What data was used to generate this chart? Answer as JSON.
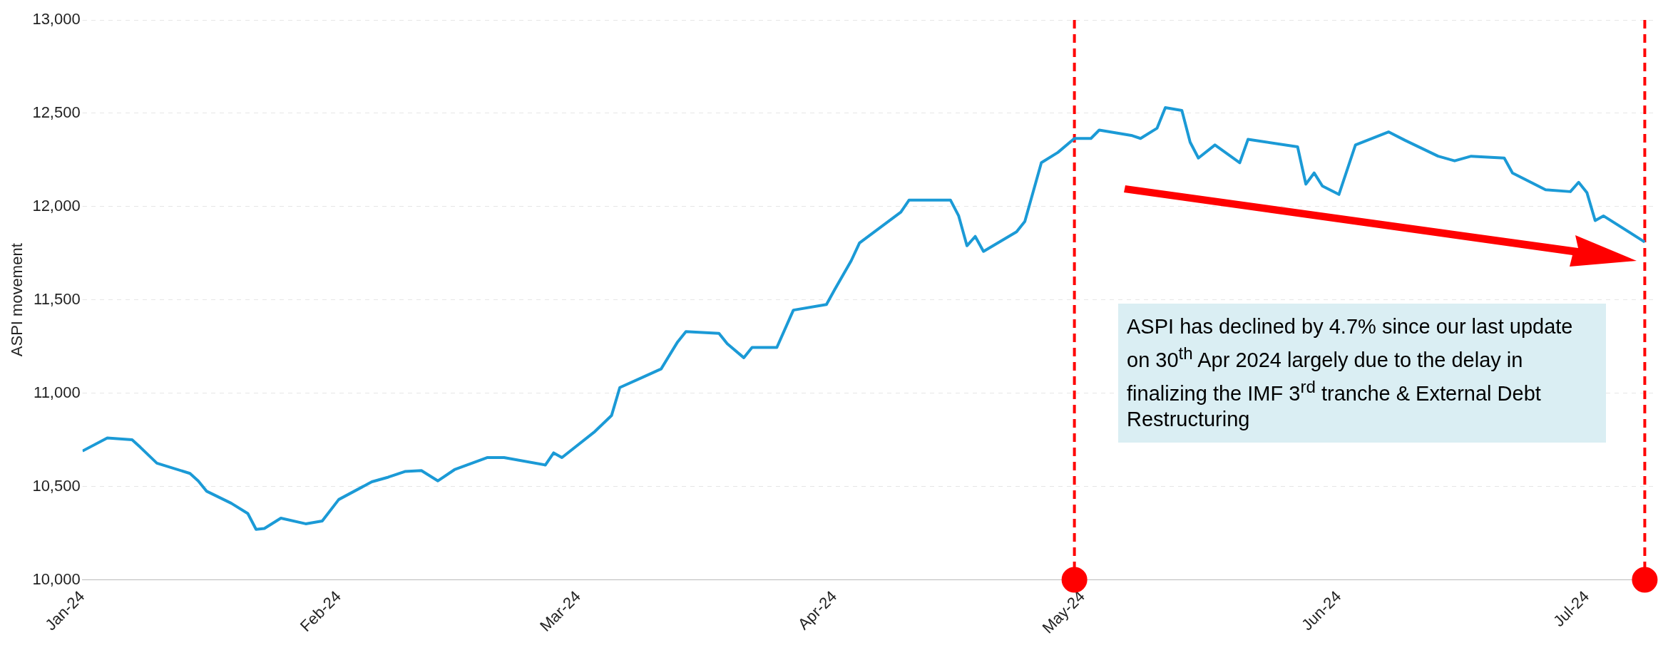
{
  "chart_data": {
    "type": "line",
    "ylabel": "ASPI movement",
    "xlim": [
      "2024-01-01",
      "2024-07-09"
    ],
    "xticks": [
      {
        "value": "2024-01-01",
        "label": "Jan-24"
      },
      {
        "value": "2024-02-01",
        "label": "Feb-24"
      },
      {
        "value": "2024-03-01",
        "label": "Mar-24"
      },
      {
        "value": "2024-04-01",
        "label": "Apr-24"
      },
      {
        "value": "2024-05-01",
        "label": "May-24"
      },
      {
        "value": "2024-06-01",
        "label": "Jun-24"
      },
      {
        "value": "2024-07-01",
        "label": "Jul-24"
      }
    ],
    "ylim": [
      10000,
      13000
    ],
    "yticks": [
      {
        "value": 10000,
        "label": "10,000"
      },
      {
        "value": 10500,
        "label": "10,500"
      },
      {
        "value": 11000,
        "label": "11,000"
      },
      {
        "value": 11500,
        "label": "11,500"
      },
      {
        "value": 12000,
        "label": "12,000"
      },
      {
        "value": 12500,
        "label": "12,500"
      },
      {
        "value": 13000,
        "label": "13,000"
      }
    ],
    "grid": "y",
    "legend": false,
    "marker": "none",
    "line_style": "solid",
    "x": [
      "2024-01-01",
      "2024-01-04",
      "2024-01-07",
      "2024-01-08",
      "2024-01-10",
      "2024-01-14",
      "2024-01-15",
      "2024-01-16",
      "2024-01-19",
      "2024-01-21",
      "2024-01-22",
      "2024-01-23",
      "2024-01-25",
      "2024-01-28",
      "2024-01-30",
      "2024-02-01",
      "2024-02-05",
      "2024-02-07",
      "2024-02-09",
      "2024-02-11",
      "2024-02-13",
      "2024-02-15",
      "2024-02-19",
      "2024-02-21",
      "2024-02-26",
      "2024-02-27",
      "2024-02-28",
      "2024-03-03",
      "2024-03-05",
      "2024-03-06",
      "2024-03-09",
      "2024-03-11",
      "2024-03-13",
      "2024-03-14",
      "2024-03-18",
      "2024-03-19",
      "2024-03-21",
      "2024-03-22",
      "2024-03-25",
      "2024-03-27",
      "2024-03-31",
      "2024-04-01",
      "2024-04-03",
      "2024-04-04",
      "2024-04-09",
      "2024-04-10",
      "2024-04-15",
      "2024-04-16",
      "2024-04-17",
      "2024-04-18",
      "2024-04-19",
      "2024-04-23",
      "2024-04-24",
      "2024-04-26",
      "2024-04-28",
      "2024-04-30",
      "2024-05-02",
      "2024-05-03",
      "2024-05-07",
      "2024-05-08",
      "2024-05-10",
      "2024-05-11",
      "2024-05-13",
      "2024-05-14",
      "2024-05-15",
      "2024-05-17",
      "2024-05-20",
      "2024-05-21",
      "2024-05-27",
      "2024-05-28",
      "2024-05-29",
      "2024-05-30",
      "2024-06-01",
      "2024-06-03",
      "2024-06-07",
      "2024-06-09",
      "2024-06-13",
      "2024-06-15",
      "2024-06-17",
      "2024-06-21",
      "2024-06-22",
      "2024-06-26",
      "2024-06-29",
      "2024-06-30",
      "2024-07-01",
      "2024-07-02",
      "2024-07-03",
      "2024-07-08"
    ],
    "series": [
      {
        "color": "#1b9ad6",
        "values": [
          10690,
          10760,
          10750,
          10710,
          10625,
          10570,
          10530,
          10475,
          10410,
          10355,
          10270,
          10275,
          10330,
          10300,
          10315,
          10430,
          10525,
          10550,
          10580,
          10585,
          10530,
          10590,
          10655,
          10655,
          10615,
          10680,
          10655,
          10795,
          10880,
          11030,
          11090,
          11130,
          11275,
          11330,
          11320,
          11265,
          11190,
          11245,
          11245,
          11445,
          11475,
          11555,
          11710,
          11805,
          11970,
          12035,
          12035,
          11950,
          11790,
          11840,
          11760,
          11865,
          11920,
          12235,
          12290,
          12365,
          12365,
          12410,
          12380,
          12365,
          12420,
          12530,
          12515,
          12345,
          12260,
          12330,
          12235,
          12360,
          12320,
          12120,
          12180,
          12110,
          12065,
          12330,
          12400,
          12355,
          12270,
          12245,
          12270,
          12260,
          12180,
          12090,
          12080,
          12130,
          12075,
          11925,
          11950,
          11810
        ]
      },
      {
        "type": "scatter",
        "color": "#ff0000",
        "marker": "circle",
        "x": [
          "2024-04-30",
          "2024-07-08"
        ],
        "values": [
          10000,
          10000
        ]
      }
    ],
    "ref_lines": [
      {
        "axis": "x",
        "value": "2024-04-30",
        "color": "#ff0000",
        "line_style": "dashed"
      },
      {
        "axis": "x",
        "value": "2024-07-08",
        "color": "#ff0000",
        "line_style": "dashed"
      }
    ],
    "annotations": [
      "ASPI has declined by 4.7% since our last update on 30$^{th}$ Apr 2024 largely due to the delay in finalizing the IMF 3$^{rd}$ tranche & External Debt Restructuring"
    ]
  }
}
